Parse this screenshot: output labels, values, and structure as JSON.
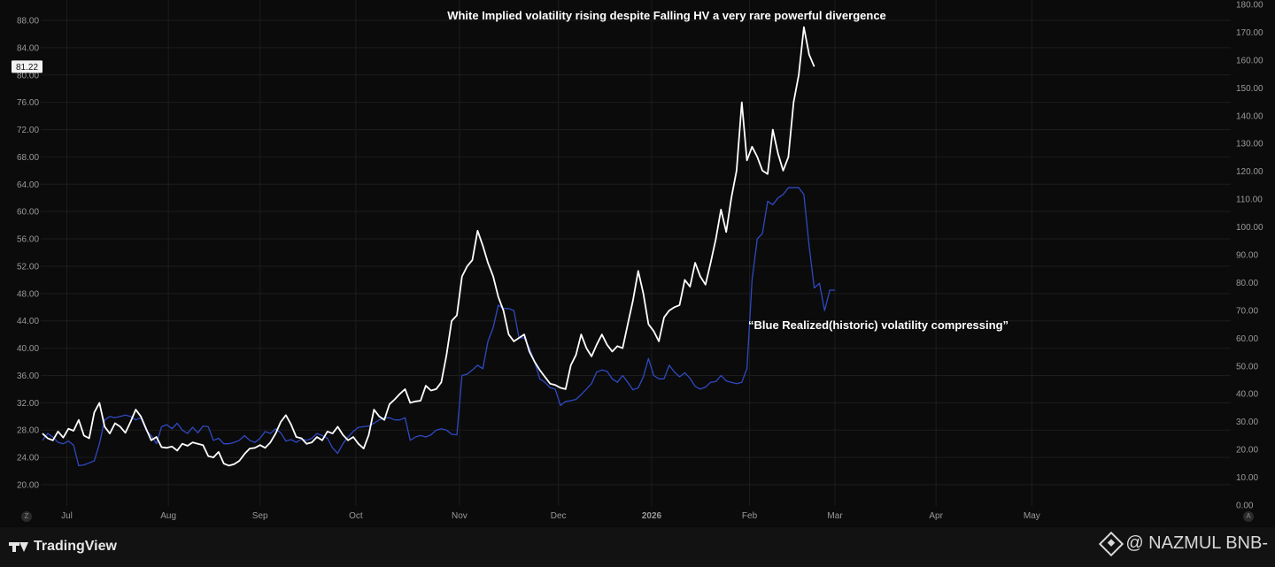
{
  "chart_data": {
    "type": "line",
    "x_ticks": [
      "Jul",
      "Aug",
      "Sep",
      "Oct",
      "Nov",
      "Dec",
      "2026",
      "Feb",
      "Mar",
      "Apr",
      "May"
    ],
    "left_axis": {
      "ticks": [
        "20.00",
        "24.00",
        "28.00",
        "32.00",
        "36.00",
        "40.00",
        "44.00",
        "48.00",
        "52.00",
        "56.00",
        "60.00",
        "64.00",
        "68.00",
        "72.00",
        "76.00",
        "80.00",
        "84.00",
        "88.00"
      ],
      "ylim": [
        18.3,
        90.5
      ],
      "last_value_label": "81.22",
      "last_value": 81.22
    },
    "right_axis": {
      "ticks": [
        "0.00",
        "10.00",
        "20.00",
        "30.00",
        "40.00",
        "50.00",
        "60.00",
        "70.00",
        "80.00",
        "90.00",
        "100.00",
        "110.00",
        "120.00",
        "130.00",
        "140.00",
        "150.00",
        "160.00",
        "170.00",
        "180.00"
      ],
      "ylim": [
        0,
        180
      ]
    },
    "annotations": [
      {
        "text": "White Implied volatility rising despite Falling HV a very rare powerful divergence"
      },
      {
        "text": "“Blue Realized(historic) volatility compressing”"
      }
    ],
    "series": [
      {
        "color": "#ffffff",
        "axis": "left",
        "values": [
          27.5,
          26.8,
          26.5,
          27.8,
          26.9,
          28.2,
          27.9,
          29.5,
          27.2,
          26.8,
          30.6,
          32.0,
          28.5,
          27.5,
          29.0,
          28.5,
          27.6,
          29.2,
          31.0,
          30.0,
          28.2,
          26.5,
          27.0,
          25.5,
          25.4,
          25.6,
          25.0,
          26.0,
          25.7,
          26.2,
          26.0,
          25.8,
          24.2,
          24.0,
          24.8,
          23.1,
          22.8,
          23.0,
          23.5,
          24.5,
          25.3,
          25.4,
          25.8,
          25.4,
          26.2,
          27.5,
          29.2,
          30.2,
          28.8,
          27.0,
          26.8,
          26.0,
          26.2,
          27.0,
          26.5,
          27.8,
          27.5,
          28.5,
          27.3,
          26.5,
          27.0,
          26.0,
          25.3,
          27.3,
          31.0,
          30.0,
          29.5,
          31.8,
          32.5,
          33.3,
          34.0,
          32.0,
          32.2,
          32.3,
          34.5,
          33.8,
          34.0,
          35.0,
          39.0,
          44.0,
          44.8,
          50.5,
          52.0,
          52.9,
          57.2,
          55.0,
          52.5,
          50.5,
          47.5,
          45.5,
          42.0,
          41.0,
          41.5,
          42.0,
          39.5,
          38.0,
          36.8,
          35.8,
          34.8,
          34.6,
          34.2,
          34.0,
          37.5,
          39.0,
          42.0,
          40.0,
          38.8,
          40.5,
          42.0,
          40.5,
          39.5,
          40.3,
          40.0,
          43.5,
          47.0,
          51.3,
          48.0,
          43.5,
          42.5,
          41.0,
          44.5,
          45.5,
          46.0,
          46.3,
          50.0,
          49.0,
          52.5,
          50.5,
          49.3,
          52.5,
          56.0,
          60.3,
          57.0,
          62.0,
          66.0,
          76.0,
          67.5,
          69.5,
          68.0,
          66.0,
          65.5,
          72.0,
          68.5,
          66.0,
          68.0,
          76.0,
          80.0,
          87.0,
          83.0,
          81.22
        ]
      },
      {
        "color": "#2f49c2",
        "axis": "left",
        "values": [
          26.5,
          27.5,
          27.0,
          26.2,
          26.0,
          26.4,
          25.8,
          22.8,
          22.9,
          23.2,
          23.5,
          26.0,
          29.5,
          30.0,
          29.8,
          30.0,
          30.2,
          30.0,
          29.5,
          29.8,
          28.0,
          27.2,
          26.0,
          28.5,
          28.8,
          28.2,
          29.0,
          28.0,
          27.5,
          28.4,
          27.6,
          28.6,
          28.5,
          26.5,
          26.8,
          26.0,
          26.0,
          26.2,
          26.5,
          27.2,
          26.5,
          26.2,
          26.8,
          27.8,
          27.5,
          28.2,
          27.6,
          26.4,
          26.6,
          26.2,
          26.7,
          26.5,
          26.8,
          27.5,
          27.2,
          26.8,
          25.4,
          24.6,
          26.0,
          27.0,
          27.8,
          28.4,
          28.5,
          28.6,
          29.0,
          29.5,
          29.8,
          29.8,
          29.5,
          29.5,
          29.8,
          26.5,
          27.0,
          27.2,
          27.0,
          27.3,
          28.0,
          28.2,
          28.0,
          27.4,
          27.3,
          36.0,
          36.2,
          36.8,
          37.5,
          37.0,
          41.0,
          43.0,
          46.3,
          45.8,
          45.8,
          45.5,
          41.5,
          41.5,
          40.0,
          38.0,
          35.5,
          35.0,
          34.2,
          34.0,
          31.6,
          32.2,
          32.3,
          32.5,
          33.2,
          34.0,
          34.8,
          36.5,
          36.8,
          36.6,
          35.5,
          35.0,
          36.0,
          35.0,
          33.9,
          34.2,
          35.8,
          38.5,
          36.0,
          35.5,
          35.5,
          37.5,
          36.5,
          35.8,
          36.4,
          35.6,
          34.4,
          34.0,
          34.3,
          35.0,
          35.1,
          36.0,
          35.2,
          35.0,
          34.8,
          35.0,
          37.0,
          50.0,
          56.0,
          56.8,
          61.5,
          61.0,
          62.0,
          62.5,
          63.5,
          63.5,
          63.5,
          62.5,
          55.0,
          48.8,
          49.5,
          45.5,
          48.5,
          48.5
        ]
      }
    ],
    "x_index_ticks": [
      4.7,
      24.3,
      42.0,
      60.5,
      80.5,
      99.6,
      117.6,
      136.5,
      153.0,
      172.5,
      191.0
    ],
    "grid": true
  },
  "branding": {
    "logo_text": "TradingView",
    "watermark": "@ NAZMUL BNB-",
    "left_corner": "Z",
    "right_corner": "A"
  },
  "colors": {
    "background": "#0b0b0b",
    "grid": "#1d1d1d",
    "axis_text": "#9a9a9a",
    "implied_vol": "#ffffff",
    "realized_vol": "#2f49c2"
  }
}
